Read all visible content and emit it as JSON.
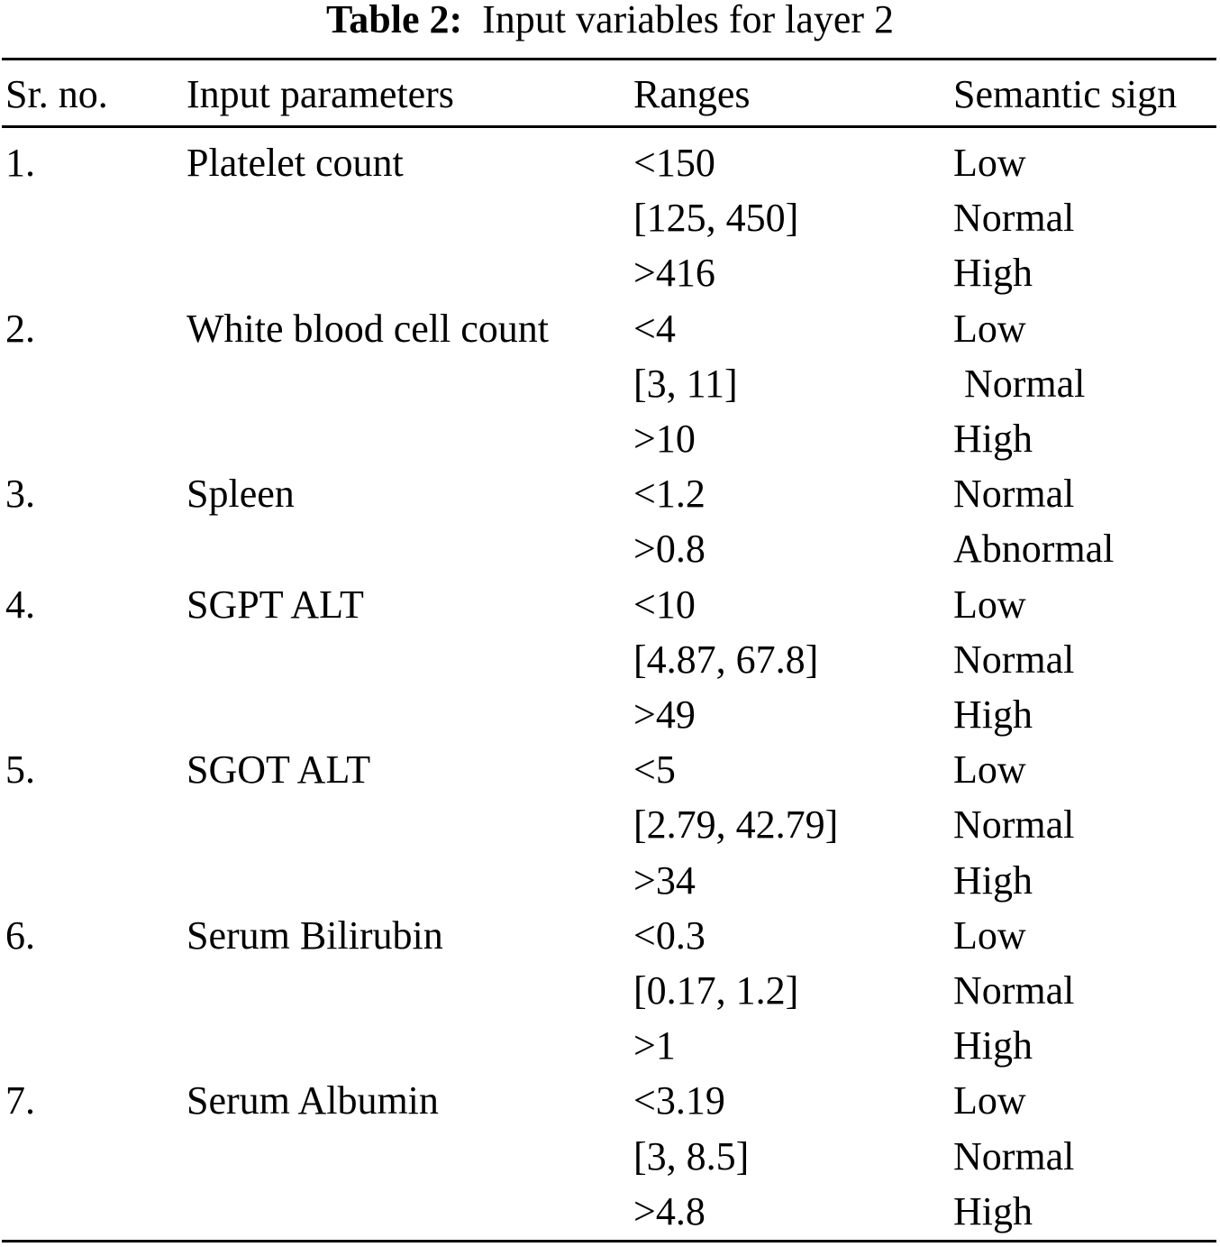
{
  "caption": {
    "label": "Table 2:",
    "text": "Input variables for layer 2"
  },
  "headers": {
    "sr_no": "Sr. no.",
    "parameter": "Input parameters",
    "range": "Ranges",
    "sign": "Semantic sign"
  },
  "rows": [
    {
      "no": "1.",
      "param": "Platelet count",
      "range": "<150",
      "sign": "Low"
    },
    {
      "no": "",
      "param": "",
      "range": "[125, 450]",
      "sign": "Normal"
    },
    {
      "no": "",
      "param": "",
      "range": ">416",
      "sign": "High"
    },
    {
      "no": "2.",
      "param": "White blood cell count",
      "range": "<4",
      "sign": "Low"
    },
    {
      "no": "",
      "param": "",
      "range": "[3, 11]",
      "sign": "Normal"
    },
    {
      "no": "",
      "param": "",
      "range": ">10",
      "sign": "High"
    },
    {
      "no": "3.",
      "param": "Spleen",
      "range": "<1.2",
      "sign": "Normal"
    },
    {
      "no": "",
      "param": "",
      "range": ">0.8",
      "sign": "Abnormal"
    },
    {
      "no": "4.",
      "param": "SGPT ALT",
      "range": "<10",
      "sign": "Low"
    },
    {
      "no": "",
      "param": "",
      "range": "[4.87, 67.8]",
      "sign": "Normal"
    },
    {
      "no": "",
      "param": "",
      "range": ">49",
      "sign": "High"
    },
    {
      "no": "5.",
      "param": "SGOT ALT",
      "range": "<5",
      "sign": "Low"
    },
    {
      "no": "",
      "param": "",
      "range": "[2.79, 42.79]",
      "sign": "Normal"
    },
    {
      "no": "",
      "param": "",
      "range": ">34",
      "sign": "High"
    },
    {
      "no": "6.",
      "param": "Serum Bilirubin",
      "range": "<0.3",
      "sign": "Low"
    },
    {
      "no": "",
      "param": "",
      "range": "[0.17, 1.2]",
      "sign": "Normal"
    },
    {
      "no": "",
      "param": "",
      "range": ">1",
      "sign": "High"
    },
    {
      "no": "7.",
      "param": "Serum Albumin",
      "range": "<3.19",
      "sign": "Low"
    },
    {
      "no": "",
      "param": "",
      "range": "[3, 8.5]",
      "sign": "Normal"
    },
    {
      "no": "",
      "param": "",
      "range": ">4.8",
      "sign": "High"
    }
  ]
}
